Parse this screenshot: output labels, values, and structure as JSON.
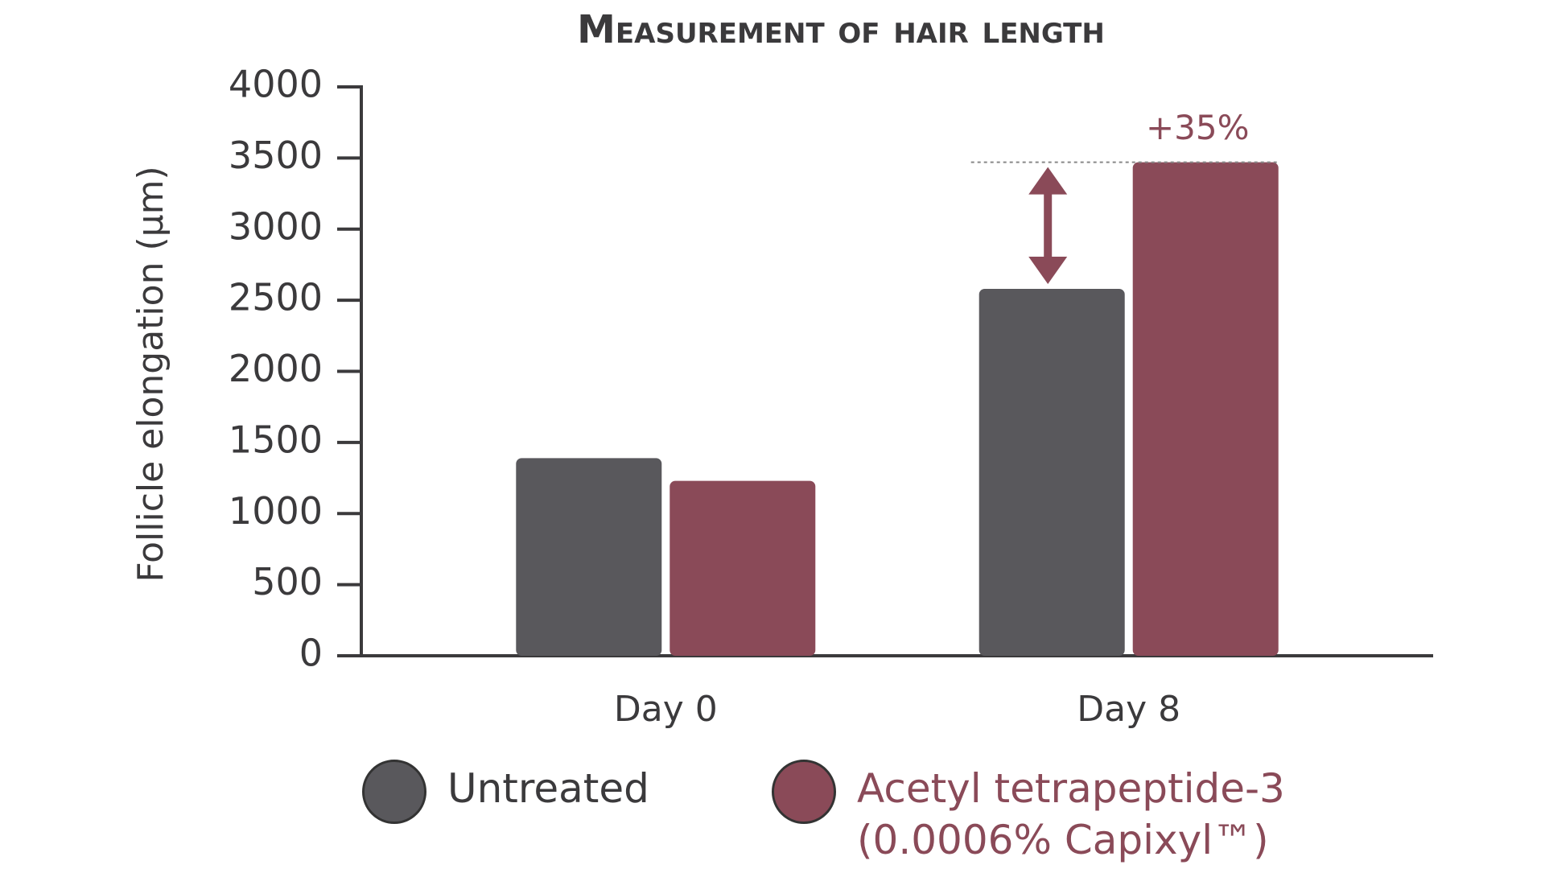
{
  "chart_data": {
    "type": "bar",
    "title": "Measurement of hair length",
    "y_label": "Follicle elongation (µm)",
    "categories": [
      "Day 0",
      "Day 8"
    ],
    "series": [
      {
        "name": "Untreated",
        "color": "#59585c",
        "values": [
          1390,
          2580
        ]
      },
      {
        "name": "Acetyl tetrapeptide-3 (0.0006% Capixyl™)",
        "color": "#8a4a58",
        "values": [
          1230,
          3470
        ]
      }
    ],
    "annotation": "+35%",
    "ylim": [
      0,
      4000
    ],
    "yticks": [
      0,
      500,
      1000,
      1500,
      2000,
      2500,
      3000,
      3500,
      4000
    ]
  }
}
